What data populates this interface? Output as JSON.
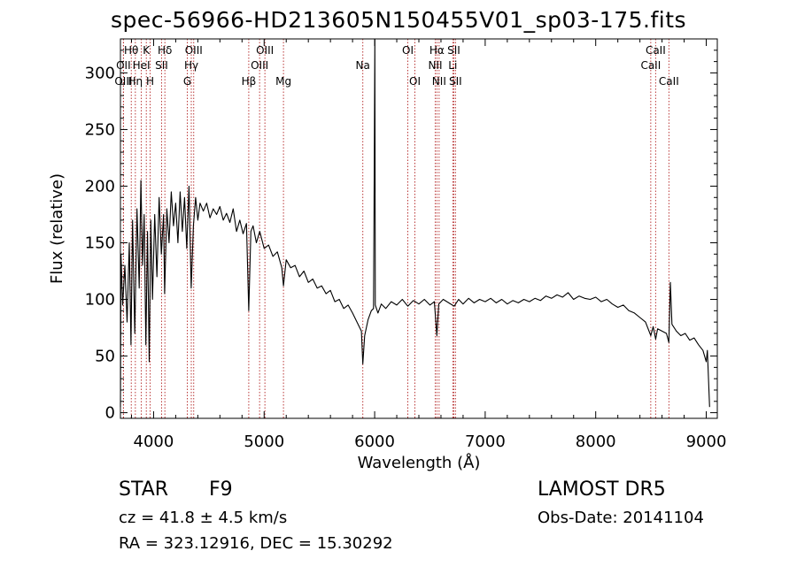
{
  "header": {
    "title": "spec-56966-HD213605N150455V01_sp03-175.fits"
  },
  "info": {
    "class": "STAR",
    "subclass": "F9",
    "survey": "LAMOST DR5",
    "cz": "cz = 41.8 ± 4.5 km/s",
    "obs_date": "Obs-Date: 20141104",
    "coords": "RA = 323.12916, DEC =  15.30292"
  },
  "chart_data": {
    "type": "line",
    "title": "spec-56966-HD213605N150455V01_sp03-175.fits",
    "xlabel": "Wavelength (Å)",
    "ylabel": "Flux (relative)",
    "xlim": [
      3700,
      9100
    ],
    "ylim": [
      -5,
      330
    ],
    "xticks": [
      4000,
      5000,
      6000,
      7000,
      8000,
      9000
    ],
    "yticks": [
      0,
      50,
      100,
      150,
      200,
      250,
      300
    ],
    "line_color": "#000000",
    "marker_color": "#b22222",
    "spectral_lines": [
      {
        "name": "Hθ",
        "wavelength": 3798,
        "row": 0
      },
      {
        "name": "OII",
        "wavelength": 3727,
        "row": 1
      },
      {
        "name": "OIII",
        "wavelength": 3727,
        "row": 2
      },
      {
        "name": "Hη",
        "wavelength": 3835,
        "row": 2
      },
      {
        "name": "K",
        "wavelength": 3934,
        "row": 0
      },
      {
        "name": "HeI",
        "wavelength": 3889,
        "row": 1
      },
      {
        "name": "H",
        "wavelength": 3969,
        "row": 2
      },
      {
        "name": "Hδ",
        "wavelength": 4102,
        "row": 0
      },
      {
        "name": "SII",
        "wavelength": 4072,
        "row": 1
      },
      {
        "name": "OIII",
        "wavelength": 4363,
        "row": 0
      },
      {
        "name": "Hγ",
        "wavelength": 4341,
        "row": 1
      },
      {
        "name": "G",
        "wavelength": 4305,
        "row": 2
      },
      {
        "name": "Hβ",
        "wavelength": 4861,
        "row": 2
      },
      {
        "name": "OIII",
        "wavelength": 5007,
        "row": 0
      },
      {
        "name": "OIII",
        "wavelength": 4959,
        "row": 1
      },
      {
        "name": "Mg",
        "wavelength": 5175,
        "row": 2
      },
      {
        "name": "Na",
        "wavelength": 5893,
        "row": 1
      },
      {
        "name": "OI",
        "wavelength": 6300,
        "row": 0
      },
      {
        "name": "OI",
        "wavelength": 6364,
        "row": 2
      },
      {
        "name": "Hα",
        "wavelength": 6563,
        "row": 0
      },
      {
        "name": "NII",
        "wavelength": 6548,
        "row": 1
      },
      {
        "name": "NII",
        "wavelength": 6583,
        "row": 2
      },
      {
        "name": "SII",
        "wavelength": 6716,
        "row": 0
      },
      {
        "name": "Li",
        "wavelength": 6707,
        "row": 1
      },
      {
        "name": "SII",
        "wavelength": 6731,
        "row": 2
      },
      {
        "name": "CaII",
        "wavelength": 8542,
        "row": 0
      },
      {
        "name": "CaII",
        "wavelength": 8498,
        "row": 1
      },
      {
        "name": "CaII",
        "wavelength": 8662,
        "row": 2
      }
    ],
    "series": [
      {
        "values": [
          [
            3700,
            5
          ],
          [
            3705,
            140
          ],
          [
            3720,
            95
          ],
          [
            3740,
            130
          ],
          [
            3760,
            80
          ],
          [
            3780,
            150
          ],
          [
            3795,
            60
          ],
          [
            3810,
            170
          ],
          [
            3830,
            70
          ],
          [
            3850,
            180
          ],
          [
            3870,
            110
          ],
          [
            3885,
            205
          ],
          [
            3900,
            130
          ],
          [
            3915,
            175
          ],
          [
            3930,
            60
          ],
          [
            3945,
            160
          ],
          [
            3960,
            45
          ],
          [
            3975,
            170
          ],
          [
            3990,
            100
          ],
          [
            4010,
            175
          ],
          [
            4030,
            120
          ],
          [
            4050,
            190
          ],
          [
            4070,
            140
          ],
          [
            4090,
            175
          ],
          [
            4100,
            105
          ],
          [
            4120,
            180
          ],
          [
            4140,
            150
          ],
          [
            4160,
            195
          ],
          [
            4180,
            165
          ],
          [
            4200,
            185
          ],
          [
            4220,
            150
          ],
          [
            4240,
            195
          ],
          [
            4260,
            160
          ],
          [
            4280,
            190
          ],
          [
            4300,
            145
          ],
          [
            4320,
            200
          ],
          [
            4340,
            110
          ],
          [
            4360,
            165
          ],
          [
            4380,
            190
          ],
          [
            4400,
            170
          ],
          [
            4420,
            185
          ],
          [
            4450,
            178
          ],
          [
            4480,
            185
          ],
          [
            4510,
            172
          ],
          [
            4540,
            180
          ],
          [
            4570,
            175
          ],
          [
            4600,
            182
          ],
          [
            4630,
            170
          ],
          [
            4660,
            176
          ],
          [
            4690,
            168
          ],
          [
            4720,
            180
          ],
          [
            4750,
            160
          ],
          [
            4780,
            170
          ],
          [
            4810,
            158
          ],
          [
            4840,
            167
          ],
          [
            4861,
            90
          ],
          [
            4880,
            160
          ],
          [
            4900,
            165
          ],
          [
            4930,
            150
          ],
          [
            4960,
            160
          ],
          [
            5000,
            145
          ],
          [
            5040,
            148
          ],
          [
            5080,
            138
          ],
          [
            5120,
            142
          ],
          [
            5160,
            128
          ],
          [
            5175,
            112
          ],
          [
            5200,
            135
          ],
          [
            5240,
            128
          ],
          [
            5280,
            130
          ],
          [
            5320,
            120
          ],
          [
            5360,
            125
          ],
          [
            5400,
            115
          ],
          [
            5440,
            118
          ],
          [
            5480,
            110
          ],
          [
            5520,
            112
          ],
          [
            5560,
            105
          ],
          [
            5600,
            108
          ],
          [
            5640,
            98
          ],
          [
            5680,
            100
          ],
          [
            5720,
            92
          ],
          [
            5760,
            95
          ],
          [
            5800,
            88
          ],
          [
            5840,
            80
          ],
          [
            5880,
            72
          ],
          [
            5893,
            43
          ],
          [
            5910,
            68
          ],
          [
            5940,
            82
          ],
          [
            5970,
            90
          ],
          [
            5990,
            92
          ],
          [
            5998,
            245
          ],
          [
            6002,
            330
          ],
          [
            6006,
            95
          ],
          [
            6030,
            88
          ],
          [
            6060,
            96
          ],
          [
            6100,
            92
          ],
          [
            6150,
            98
          ],
          [
            6200,
            95
          ],
          [
            6250,
            100
          ],
          [
            6300,
            94
          ],
          [
            6350,
            99
          ],
          [
            6400,
            96
          ],
          [
            6450,
            100
          ],
          [
            6500,
            95
          ],
          [
            6540,
            98
          ],
          [
            6563,
            68
          ],
          [
            6580,
            96
          ],
          [
            6620,
            100
          ],
          [
            6670,
            97
          ],
          [
            6720,
            94
          ],
          [
            6760,
            100
          ],
          [
            6800,
            96
          ],
          [
            6850,
            101
          ],
          [
            6900,
            97
          ],
          [
            6950,
            100
          ],
          [
            7000,
            98
          ],
          [
            7050,
            101
          ],
          [
            7100,
            97
          ],
          [
            7150,
            100
          ],
          [
            7200,
            96
          ],
          [
            7250,
            99
          ],
          [
            7300,
            97
          ],
          [
            7350,
            100
          ],
          [
            7400,
            98
          ],
          [
            7450,
            101
          ],
          [
            7500,
            99
          ],
          [
            7550,
            103
          ],
          [
            7600,
            101
          ],
          [
            7650,
            104
          ],
          [
            7700,
            102
          ],
          [
            7750,
            106
          ],
          [
            7800,
            100
          ],
          [
            7850,
            103
          ],
          [
            7900,
            101
          ],
          [
            7950,
            100
          ],
          [
            8000,
            102
          ],
          [
            8050,
            98
          ],
          [
            8100,
            100
          ],
          [
            8150,
            96
          ],
          [
            8200,
            93
          ],
          [
            8250,
            95
          ],
          [
            8300,
            90
          ],
          [
            8350,
            88
          ],
          [
            8400,
            84
          ],
          [
            8450,
            80
          ],
          [
            8498,
            68
          ],
          [
            8520,
            76
          ],
          [
            8542,
            65
          ],
          [
            8560,
            74
          ],
          [
            8600,
            72
          ],
          [
            8640,
            70
          ],
          [
            8662,
            62
          ],
          [
            8675,
            115
          ],
          [
            8690,
            78
          ],
          [
            8730,
            72
          ],
          [
            8770,
            68
          ],
          [
            8810,
            70
          ],
          [
            8850,
            64
          ],
          [
            8890,
            66
          ],
          [
            8930,
            60
          ],
          [
            8970,
            55
          ],
          [
            9000,
            45
          ],
          [
            9010,
            55
          ],
          [
            9030,
            5
          ]
        ]
      }
    ]
  }
}
